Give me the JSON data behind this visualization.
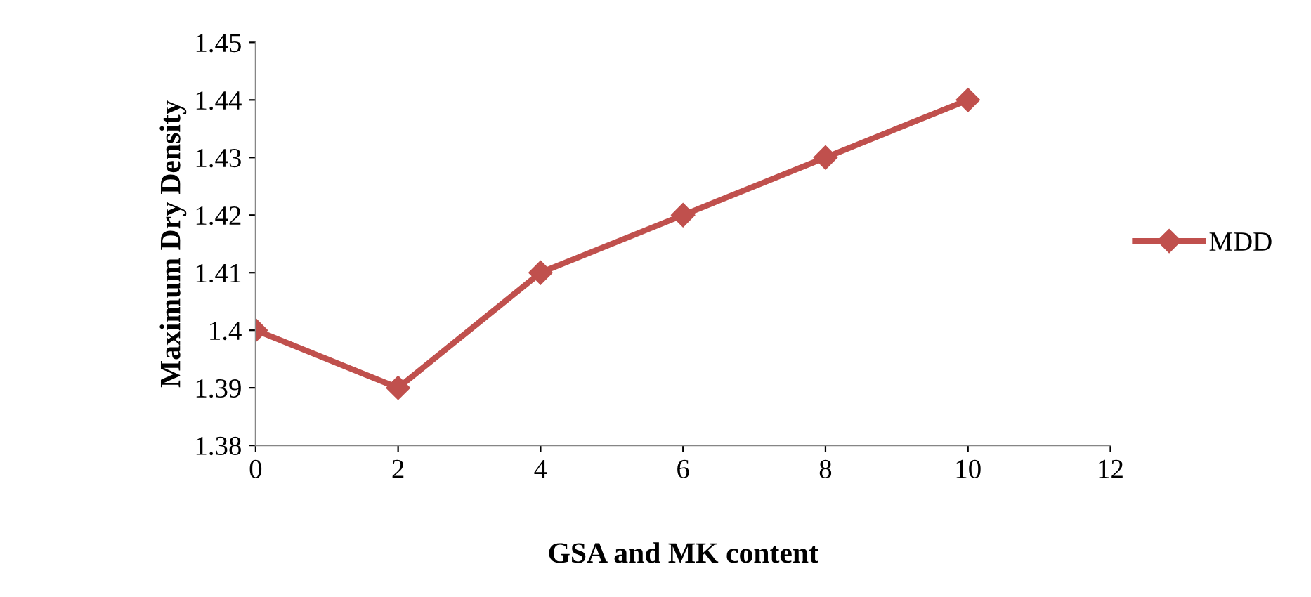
{
  "chart_data": {
    "type": "line",
    "xlabel": "GSA and MK content",
    "ylabel": "Maximum Dry Density",
    "x": [
      0,
      2,
      4,
      6,
      8,
      10
    ],
    "series": [
      {
        "name": "MDD",
        "color": "#c0504d",
        "values": [
          1.4,
          1.39,
          1.41,
          1.42,
          1.43,
          1.44
        ]
      }
    ],
    "xlim": [
      0,
      12
    ],
    "xticks": [
      0,
      2,
      4,
      6,
      8,
      10,
      12
    ],
    "ylim": [
      1.38,
      1.45
    ],
    "yticks": [
      1.38,
      1.39,
      1.4,
      1.41,
      1.42,
      1.43,
      1.44,
      1.45
    ],
    "grid": false,
    "legend": "right",
    "marker": "diamond",
    "line_style": "solid"
  }
}
